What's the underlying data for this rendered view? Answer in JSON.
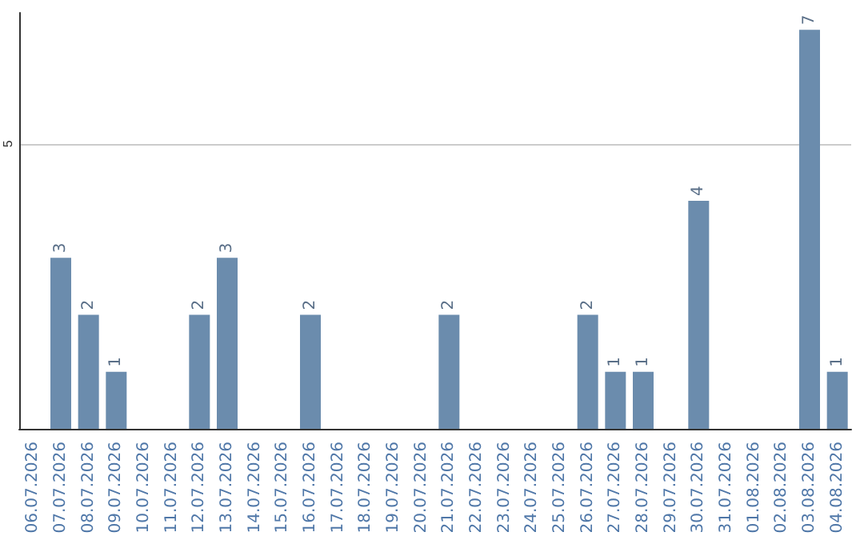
{
  "chart_data": {
    "type": "bar",
    "categories": [
      "06.07.2026",
      "07.07.2026",
      "08.07.2026",
      "09.07.2026",
      "10.07.2026",
      "11.07.2026",
      "12.07.2026",
      "13.07.2026",
      "14.07.2026",
      "15.07.2026",
      "16.07.2026",
      "17.07.2026",
      "18.07.2026",
      "19.07.2026",
      "20.07.2026",
      "21.07.2026",
      "22.07.2026",
      "23.07.2026",
      "24.07.2026",
      "25.07.2026",
      "26.07.2026",
      "27.07.2026",
      "28.07.2026",
      "29.07.2026",
      "30.07.2026",
      "31.07.2026",
      "01.08.2026",
      "02.08.2026",
      "03.08.2026",
      "04.08.2026"
    ],
    "values": [
      0,
      3,
      2,
      1,
      0,
      0,
      2,
      3,
      0,
      0,
      2,
      0,
      0,
      0,
      0,
      2,
      0,
      0,
      0,
      0,
      2,
      1,
      1,
      0,
      4,
      0,
      0,
      0,
      7,
      1
    ],
    "value_labels": [
      null,
      "3",
      "2",
      "1",
      null,
      null,
      "2",
      "3",
      null,
      null,
      "2",
      null,
      null,
      null,
      null,
      "2",
      null,
      null,
      null,
      null,
      "2",
      "1",
      "1",
      null,
      "4",
      null,
      null,
      null,
      "7",
      "1"
    ],
    "color": "#6b8cad",
    "ylim": [
      0,
      7.3
    ],
    "yticks": [
      5
    ],
    "grid": true
  }
}
